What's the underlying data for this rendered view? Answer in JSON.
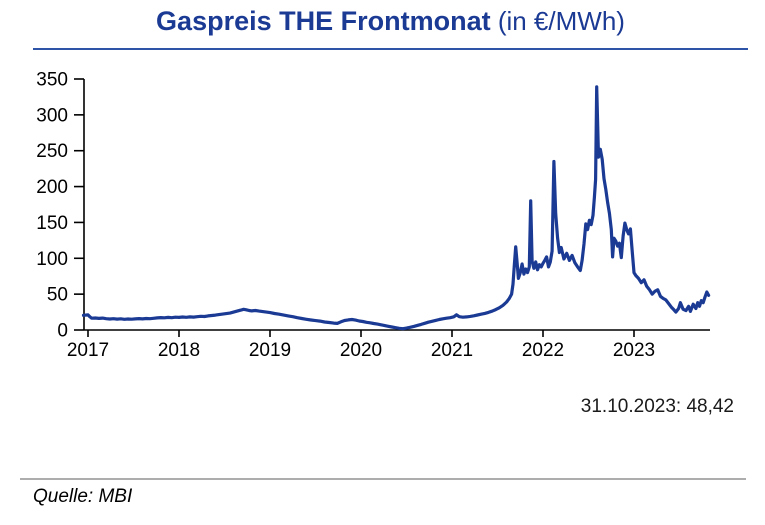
{
  "header": {
    "title_main": "Gaspreis THE Frontmonat",
    "title_unit": " (in €/MWh)"
  },
  "annotation": {
    "last_value_label": "31.10.2023: 48,42"
  },
  "footer": {
    "source_label": "Quelle: MBI"
  },
  "colors": {
    "line": "#1b3a94",
    "title": "#1b3a94",
    "title_rule": "#2d54a7",
    "footer_rule": "#adadad",
    "axis": "#000000"
  },
  "chart_data": {
    "type": "line",
    "title": "Gaspreis THE Frontmonat (in €/MWh)",
    "xlabel": "",
    "ylabel": "",
    "ylim": [
      0,
      350
    ],
    "xlim": [
      2016.95,
      2023.82
    ],
    "grid": false,
    "legend": false,
    "y_ticks": [
      0,
      50,
      100,
      150,
      200,
      250,
      300,
      350
    ],
    "x_ticks": [
      2017,
      2018,
      2019,
      2020,
      2021,
      2022,
      2023
    ],
    "x_tick_labels": [
      "2017",
      "2018",
      "2019",
      "2020",
      "2021",
      "2022",
      "2023"
    ],
    "last_value": 48.42,
    "last_value_label": "31.10.2023: 48,42",
    "series": [
      {
        "name": "Gaspreis THE Frontmonat (€/MWh)",
        "points": [
          [
            2016.95,
            20.5
          ],
          [
            2017.0,
            21
          ],
          [
            2017.02,
            18.5
          ],
          [
            2017.04,
            16.5
          ],
          [
            2017.08,
            16.8
          ],
          [
            2017.12,
            16.2
          ],
          [
            2017.16,
            16.6
          ],
          [
            2017.2,
            15.8
          ],
          [
            2017.24,
            15.4
          ],
          [
            2017.28,
            15.8
          ],
          [
            2017.32,
            15.2
          ],
          [
            2017.36,
            15.6
          ],
          [
            2017.4,
            14.9
          ],
          [
            2017.44,
            15.3
          ],
          [
            2017.48,
            15.0
          ],
          [
            2017.52,
            15.5
          ],
          [
            2017.56,
            15.9
          ],
          [
            2017.6,
            15.5
          ],
          [
            2017.64,
            16.1
          ],
          [
            2017.68,
            15.8
          ],
          [
            2017.72,
            16.3
          ],
          [
            2017.76,
            16.9
          ],
          [
            2017.8,
            17.3
          ],
          [
            2017.84,
            17.0
          ],
          [
            2017.88,
            17.6
          ],
          [
            2017.92,
            17.2
          ],
          [
            2017.96,
            17.8
          ],
          [
            2018.0,
            17.5
          ],
          [
            2018.04,
            18.1
          ],
          [
            2018.08,
            17.7
          ],
          [
            2018.12,
            18.3
          ],
          [
            2018.16,
            18.0
          ],
          [
            2018.2,
            18.6
          ],
          [
            2018.24,
            19.1
          ],
          [
            2018.28,
            18.8
          ],
          [
            2018.32,
            19.6
          ],
          [
            2018.36,
            20.2
          ],
          [
            2018.4,
            20.8
          ],
          [
            2018.44,
            21.5
          ],
          [
            2018.48,
            22.2
          ],
          [
            2018.52,
            22.8
          ],
          [
            2018.56,
            23.6
          ],
          [
            2018.6,
            24.9
          ],
          [
            2018.64,
            26.3
          ],
          [
            2018.68,
            27.8
          ],
          [
            2018.71,
            28.8
          ],
          [
            2018.74,
            28.2
          ],
          [
            2018.77,
            27.2
          ],
          [
            2018.8,
            26.6
          ],
          [
            2018.84,
            27.2
          ],
          [
            2018.88,
            26.4
          ],
          [
            2018.92,
            25.7
          ],
          [
            2018.96,
            24.9
          ],
          [
            2019.0,
            24.2
          ],
          [
            2019.05,
            23.0
          ],
          [
            2019.1,
            22.0
          ],
          [
            2019.15,
            20.8
          ],
          [
            2019.2,
            19.7
          ],
          [
            2019.25,
            18.6
          ],
          [
            2019.3,
            17.2
          ],
          [
            2019.35,
            16.0
          ],
          [
            2019.4,
            14.9
          ],
          [
            2019.45,
            14.0
          ],
          [
            2019.5,
            13.1
          ],
          [
            2019.55,
            12.4
          ],
          [
            2019.6,
            11.2
          ],
          [
            2019.65,
            10.5
          ],
          [
            2019.7,
            9.6
          ],
          [
            2019.74,
            9.2
          ],
          [
            2019.78,
            11.5
          ],
          [
            2019.82,
            13.2
          ],
          [
            2019.86,
            14.1
          ],
          [
            2019.9,
            14.6
          ],
          [
            2019.94,
            13.8
          ],
          [
            2019.98,
            12.6
          ],
          [
            2020.02,
            11.8
          ],
          [
            2020.06,
            10.8
          ],
          [
            2020.1,
            10.0
          ],
          [
            2020.14,
            9.1
          ],
          [
            2020.18,
            8.2
          ],
          [
            2020.22,
            7.2
          ],
          [
            2020.26,
            6.1
          ],
          [
            2020.3,
            5.2
          ],
          [
            2020.34,
            4.2
          ],
          [
            2020.38,
            3.2
          ],
          [
            2020.42,
            2.4
          ],
          [
            2020.46,
            1.8
          ],
          [
            2020.5,
            2.6
          ],
          [
            2020.54,
            3.8
          ],
          [
            2020.58,
            5.0
          ],
          [
            2020.62,
            6.4
          ],
          [
            2020.66,
            7.8
          ],
          [
            2020.7,
            9.4
          ],
          [
            2020.74,
            10.9
          ],
          [
            2020.78,
            12.2
          ],
          [
            2020.82,
            13.4
          ],
          [
            2020.86,
            14.6
          ],
          [
            2020.9,
            15.6
          ],
          [
            2020.94,
            16.4
          ],
          [
            2020.98,
            17.2
          ],
          [
            2021.02,
            18.4
          ],
          [
            2021.05,
            21.2
          ],
          [
            2021.08,
            18.6
          ],
          [
            2021.12,
            17.8
          ],
          [
            2021.16,
            18.3
          ],
          [
            2021.2,
            18.9
          ],
          [
            2021.24,
            19.8
          ],
          [
            2021.28,
            20.9
          ],
          [
            2021.32,
            22.0
          ],
          [
            2021.36,
            23.2
          ],
          [
            2021.4,
            24.6
          ],
          [
            2021.44,
            26.2
          ],
          [
            2021.48,
            28.4
          ],
          [
            2021.52,
            31.0
          ],
          [
            2021.56,
            34.5
          ],
          [
            2021.6,
            39.0
          ],
          [
            2021.63,
            44.0
          ],
          [
            2021.655,
            50.0
          ],
          [
            2021.67,
            64.0
          ],
          [
            2021.685,
            90.0
          ],
          [
            2021.7,
            116.0
          ],
          [
            2021.715,
            94.0
          ],
          [
            2021.73,
            72.0
          ],
          [
            2021.75,
            80.0
          ],
          [
            2021.77,
            92.0
          ],
          [
            2021.79,
            78.0
          ],
          [
            2021.81,
            85.0
          ],
          [
            2021.83,
            80.0
          ],
          [
            2021.85,
            88.0
          ],
          [
            2021.865,
            180.0
          ],
          [
            2021.88,
            96.0
          ],
          [
            2021.9,
            86.0
          ],
          [
            2021.92,
            95.0
          ],
          [
            2021.94,
            84.0
          ],
          [
            2021.96,
            91.0
          ],
          [
            2021.98,
            88.0
          ],
          [
            2022.0,
            93.0
          ],
          [
            2022.02,
            97.0
          ],
          [
            2022.04,
            102.0
          ],
          [
            2022.06,
            88.0
          ],
          [
            2022.08,
            95.0
          ],
          [
            2022.1,
            110.0
          ],
          [
            2022.12,
            235.0
          ],
          [
            2022.14,
            162.0
          ],
          [
            2022.16,
            128.0
          ],
          [
            2022.18,
            108.0
          ],
          [
            2022.2,
            115.0
          ],
          [
            2022.23,
            99.0
          ],
          [
            2022.26,
            107.0
          ],
          [
            2022.29,
            97.0
          ],
          [
            2022.32,
            104.0
          ],
          [
            2022.35,
            94.0
          ],
          [
            2022.38,
            88.0
          ],
          [
            2022.41,
            83.0
          ],
          [
            2022.43,
            97.0
          ],
          [
            2022.45,
            120.0
          ],
          [
            2022.47,
            148.0
          ],
          [
            2022.49,
            140.0
          ],
          [
            2022.51,
            153.0
          ],
          [
            2022.53,
            147.0
          ],
          [
            2022.55,
            160.0
          ],
          [
            2022.565,
            185.0
          ],
          [
            2022.578,
            210.0
          ],
          [
            2022.59,
            339.0
          ],
          [
            2022.6,
            290.0
          ],
          [
            2022.61,
            241.0
          ],
          [
            2022.63,
            252.0
          ],
          [
            2022.65,
            238.0
          ],
          [
            2022.67,
            211.0
          ],
          [
            2022.69,
            196.0
          ],
          [
            2022.71,
            178.0
          ],
          [
            2022.73,
            163.0
          ],
          [
            2022.75,
            140.0
          ],
          [
            2022.765,
            102.0
          ],
          [
            2022.78,
            128.0
          ],
          [
            2022.8,
            124.0
          ],
          [
            2022.82,
            117.0
          ],
          [
            2022.84,
            121.0
          ],
          [
            2022.86,
            101.0
          ],
          [
            2022.88,
            131.0
          ],
          [
            2022.9,
            149.0
          ],
          [
            2022.92,
            140.0
          ],
          [
            2022.94,
            134.0
          ],
          [
            2022.96,
            141.0
          ],
          [
            2022.98,
            110.0
          ],
          [
            2023.0,
            80.0
          ],
          [
            2023.02,
            76.0
          ],
          [
            2023.05,
            72.0
          ],
          [
            2023.08,
            66.0
          ],
          [
            2023.11,
            70.0
          ],
          [
            2023.14,
            61.0
          ],
          [
            2023.17,
            56.0
          ],
          [
            2023.2,
            50.0
          ],
          [
            2023.23,
            54.0
          ],
          [
            2023.26,
            56.0
          ],
          [
            2023.29,
            47.0
          ],
          [
            2023.32,
            44.0
          ],
          [
            2023.35,
            42.0
          ],
          [
            2023.38,
            37.0
          ],
          [
            2023.41,
            32.0
          ],
          [
            2023.44,
            28.0
          ],
          [
            2023.46,
            25.0
          ],
          [
            2023.49,
            30.0
          ],
          [
            2023.51,
            38.0
          ],
          [
            2023.54,
            29.0
          ],
          [
            2023.57,
            27.0
          ],
          [
            2023.6,
            33.0
          ],
          [
            2023.62,
            26.0
          ],
          [
            2023.65,
            36.0
          ],
          [
            2023.68,
            30.0
          ],
          [
            2023.7,
            38.0
          ],
          [
            2023.72,
            33.0
          ],
          [
            2023.74,
            41.0
          ],
          [
            2023.76,
            38.0
          ],
          [
            2023.78,
            46.0
          ],
          [
            2023.8,
            53.0
          ],
          [
            2023.82,
            48.42
          ]
        ]
      }
    ]
  }
}
